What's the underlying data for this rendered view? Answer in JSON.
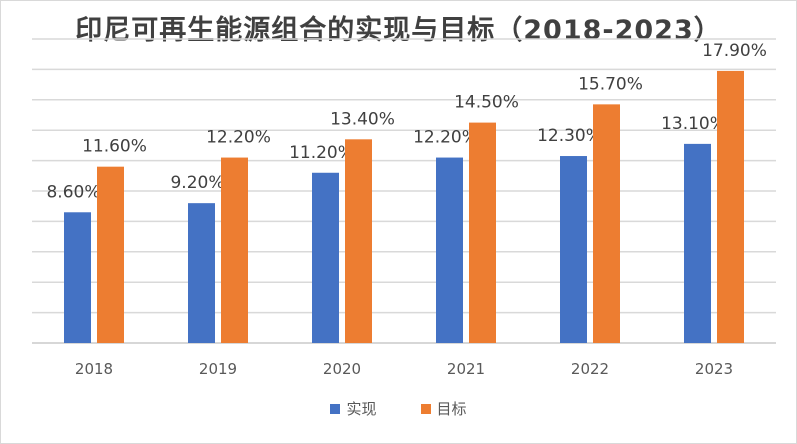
{
  "chart_data": {
    "type": "bar",
    "title": "印尼可再生能源组合的实现与目标（2018-2023）",
    "categories": [
      "2018",
      "2019",
      "2020",
      "2021",
      "2022",
      "2023"
    ],
    "series": [
      {
        "name": "实现",
        "color": "#4472c4",
        "values": [
          8.6,
          9.2,
          11.2,
          12.2,
          12.3,
          13.1
        ],
        "labels": [
          "8.60%",
          "9.20%",
          "11.20%",
          "12.20%",
          "12.30%",
          "13.10%"
        ]
      },
      {
        "name": "目标",
        "color": "#ed7d31",
        "values": [
          11.6,
          12.2,
          13.4,
          14.5,
          15.7,
          17.9
        ],
        "labels": [
          "11.60%",
          "12.20%",
          "13.40%",
          "14.50%",
          "15.70%",
          "17.90%"
        ]
      }
    ],
    "ylim": [
      0,
      20
    ],
    "grid": true,
    "y_tick_step": 2,
    "legend_position": "bottom"
  }
}
